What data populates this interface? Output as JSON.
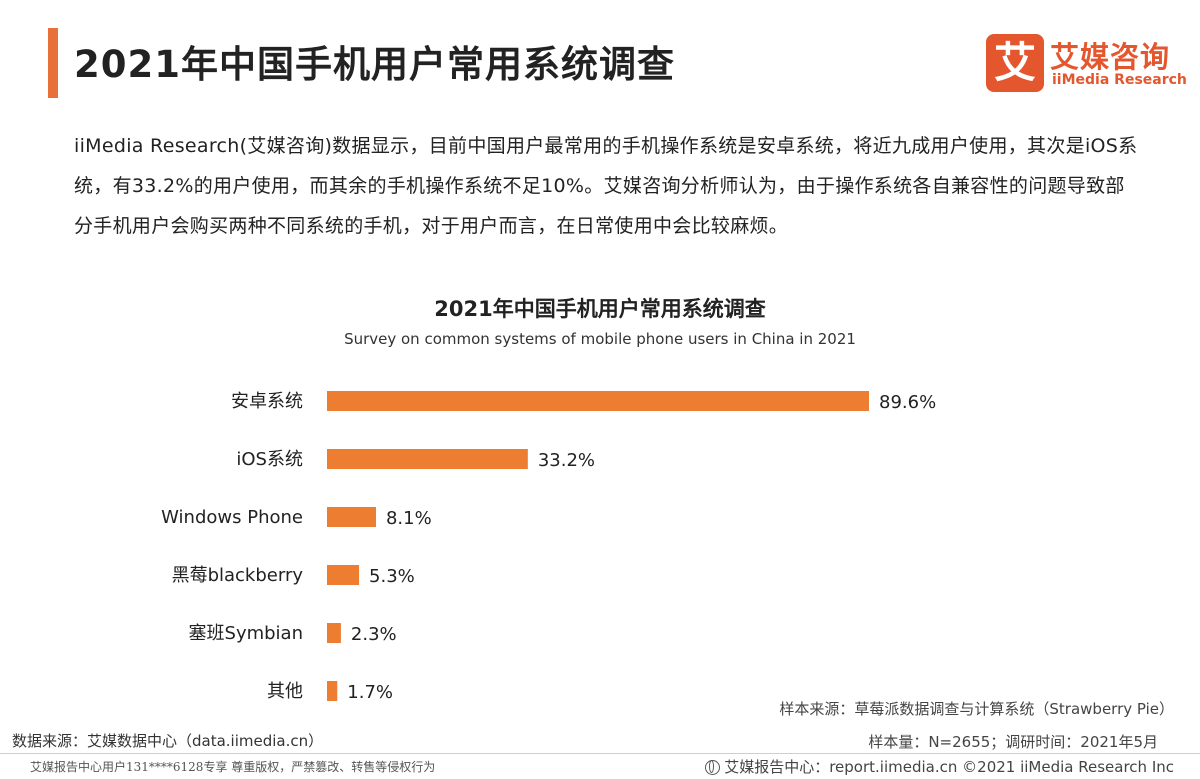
{
  "header": {
    "title": "2021年中国手机用户常用系统调查",
    "logo_mark": "艾",
    "logo_cn": "艾媒咨询",
    "logo_en": "iiMedia Research",
    "accent_color": "#e8703a"
  },
  "intro_text": "iiMedia Research(艾媒咨询)数据显示，目前中国用户最常用的手机操作系统是安卓系统，将近九成用户使用，其次是iOS系统，有33.2%的用户使用，而其余的手机操作系统不足10%。艾媒咨询分析师认为，由于操作系统各自兼容性的问题导致部分手机用户会购买两种不同系统的手机，对于用户而言，在日常使用中会比较麻烦。",
  "chart_data": {
    "type": "bar",
    "orientation": "horizontal",
    "title": "2021年中国手机用户常用系统调查",
    "subtitle": "Survey on common systems of mobile phone users in China in 2021",
    "categories": [
      "安卓系统",
      "iOS系统",
      "Windows Phone",
      "黑莓blackberry",
      "塞班Symbian",
      "其他"
    ],
    "values": [
      89.6,
      33.2,
      8.1,
      5.3,
      2.3,
      1.7
    ],
    "value_labels": [
      "89.6%",
      "33.2%",
      "8.1%",
      "5.3%",
      "2.3%",
      "1.7%"
    ],
    "unit": "%",
    "bar_color": "#ed7d31",
    "xlim": [
      0,
      89.6
    ],
    "grid": false,
    "legend": "none"
  },
  "sources": {
    "sample_source": "样本来源：草莓派数据调查与计算系统（Strawberry Pie）",
    "data_source": "数据来源：艾媒数据中心（data.iimedia.cn）",
    "sample_size": "样本量：N=2655；调研时间：2021年5月"
  },
  "footer": {
    "left": "艾媒报告中心用户131****6128专享 尊重版权，严禁篡改、转售等侵权行为",
    "right": "艾媒报告中心：report.iimedia.cn ©2021 iiMedia Research Inc",
    "icon": "globe-icon"
  }
}
